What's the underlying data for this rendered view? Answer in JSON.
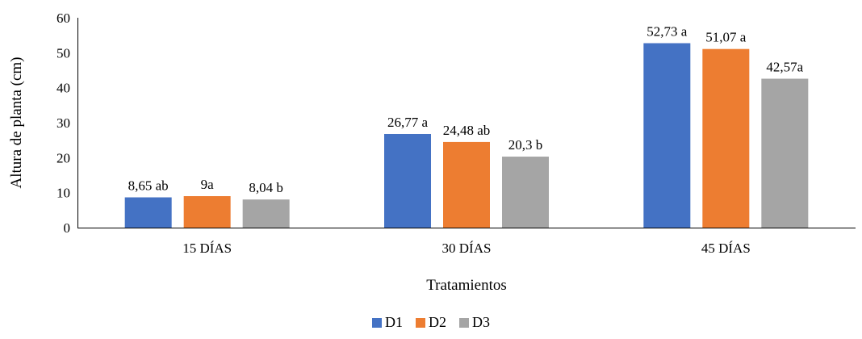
{
  "chart_data": {
    "type": "bar",
    "categories": [
      "15 DÍAS",
      "30 DÍAS",
      "45 DÍAS"
    ],
    "series": [
      {
        "name": "D1",
        "color": "#4472C4",
        "values": [
          8.65,
          26.77,
          52.73
        ],
        "labels": [
          "8,65 ab",
          "26,77 a",
          "52,73 a"
        ]
      },
      {
        "name": "D2",
        "color": "#ED7D31",
        "values": [
          9,
          24.48,
          51.07
        ],
        "labels": [
          "9a",
          "24,48 ab",
          "51,07  a"
        ]
      },
      {
        "name": "D3",
        "color": "#A5A5A5",
        "values": [
          8.04,
          20.3,
          42.57
        ],
        "labels": [
          "8,04 b",
          "20,3 b",
          "42,57a"
        ]
      }
    ],
    "xlabel": "Tratamientos",
    "ylabel": "Altura de planta (cm)",
    "ylim": [
      0,
      60
    ],
    "yticks": [
      0,
      10,
      20,
      30,
      40,
      50,
      60
    ],
    "grid": false,
    "legend": "bottom"
  }
}
